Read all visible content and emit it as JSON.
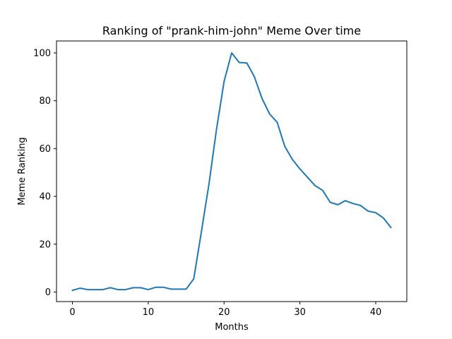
{
  "chart_data": {
    "type": "line",
    "title": "Ranking of \"prank-him-john\" Meme Over time",
    "xlabel": "Months",
    "ylabel": "Meme Ranking",
    "xlim": [
      -2.1,
      44.1
    ],
    "ylim": [
      -4,
      105
    ],
    "xticks": [
      0,
      10,
      20,
      30,
      40
    ],
    "yticks": [
      0,
      20,
      40,
      60,
      80,
      100
    ],
    "grid": false,
    "line_color": "#1f77b4",
    "series": [
      {
        "x": [
          0,
          1,
          2,
          3,
          4,
          5,
          6,
          7,
          8,
          9,
          10,
          11,
          12,
          13,
          14,
          15,
          16,
          17,
          18,
          19,
          20,
          21,
          22,
          23,
          24,
          25,
          26,
          27,
          28,
          29,
          30,
          31,
          32,
          33,
          34,
          35,
          36,
          37,
          38,
          39,
          40,
          41,
          42
        ],
        "values": [
          0.7,
          1.6,
          1.0,
          1.0,
          1.0,
          1.8,
          1.0,
          1.0,
          1.8,
          1.8,
          1.0,
          2.0,
          2.0,
          1.2,
          1.2,
          1.2,
          5.5,
          25,
          45,
          68,
          88,
          100,
          96,
          95.8,
          90,
          81,
          74.5,
          71,
          61,
          55.5,
          51.5,
          48,
          44.5,
          42.5,
          37.5,
          36.5,
          38.2,
          37,
          36.2,
          33.8,
          33.2,
          31,
          27
        ]
      }
    ]
  }
}
